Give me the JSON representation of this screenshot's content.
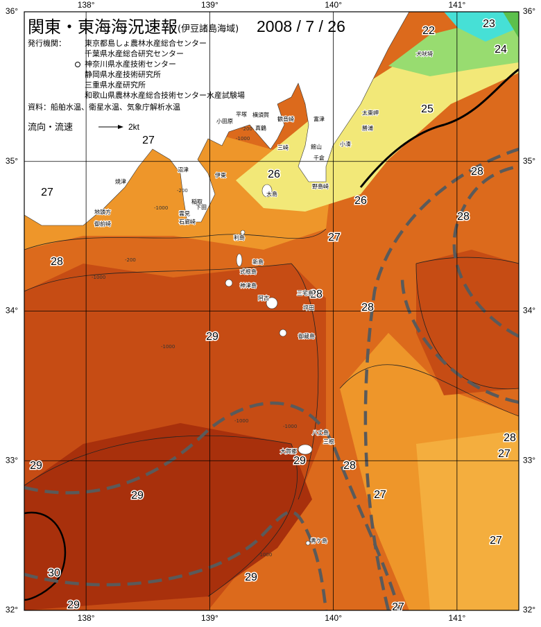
{
  "header": {
    "title": "関東・東海海況速報",
    "subtitle": "(伊豆諸島海域)",
    "date": "2008 / 7 / 26",
    "issuers_label": "発行機関：",
    "issuers": [
      "東京都島しょ農林水産総合センター",
      "千葉県水産総合研究センター",
      "神奈川県水産技術センター",
      "静岡県水産技術研究所",
      "三重県水産研究所",
      "和歌山県農林水産総合技術センター水産試験場"
    ],
    "source": "資料：船舶水温、衛星水温、気象庁解析水温"
  },
  "current_legend": {
    "label": "流向・流速",
    "scale": "2kt"
  },
  "map_axes": {
    "xlim": [
      137.5,
      141.5
    ],
    "ylim": [
      32,
      36
    ],
    "lon_ticks": [
      {
        "value": 138,
        "label": "138°"
      },
      {
        "value": 139,
        "label": "139°"
      },
      {
        "value": 140,
        "label": "140°"
      },
      {
        "value": 141,
        "label": "141°"
      }
    ],
    "lat_ticks": [
      {
        "value": 32,
        "label": "32°"
      },
      {
        "value": 33,
        "label": "33°"
      },
      {
        "value": 34,
        "label": "34°"
      },
      {
        "value": 35,
        "label": "35°"
      },
      {
        "value": 36,
        "label": "36°"
      }
    ]
  },
  "isotherm_labels": [
    23,
    22,
    24,
    25,
    27,
    26,
    28,
    27,
    26,
    28,
    27,
    28,
    28,
    28,
    29,
    28,
    27,
    29,
    29,
    28,
    29,
    27,
    27,
    30,
    29,
    29,
    27
  ],
  "place_names": [
    "犬吠埼",
    "太東岬",
    "平塚",
    "横須賀",
    "観音崎",
    "富津",
    "小田原",
    "真鶴",
    "勝浦",
    "小湊",
    "館山",
    "三崎",
    "千倉",
    "沼津",
    "伊東",
    "焼津",
    "大島",
    "野島崎",
    "稲取",
    "下田",
    "雲見",
    "石廊崎",
    "地頭方",
    "御前崎",
    "利島",
    "新島",
    "式根島",
    "神津島",
    "三宅島",
    "阿古",
    "坪田",
    "御蔵島",
    "八丈島",
    "三根",
    "大賀郷",
    "青ケ島"
  ],
  "depth_labels": [
    "-200",
    "-1000",
    "-200",
    "-1000",
    "-200",
    "-1000",
    "-1000",
    "-1000",
    "-1000",
    "-1000"
  ]
}
